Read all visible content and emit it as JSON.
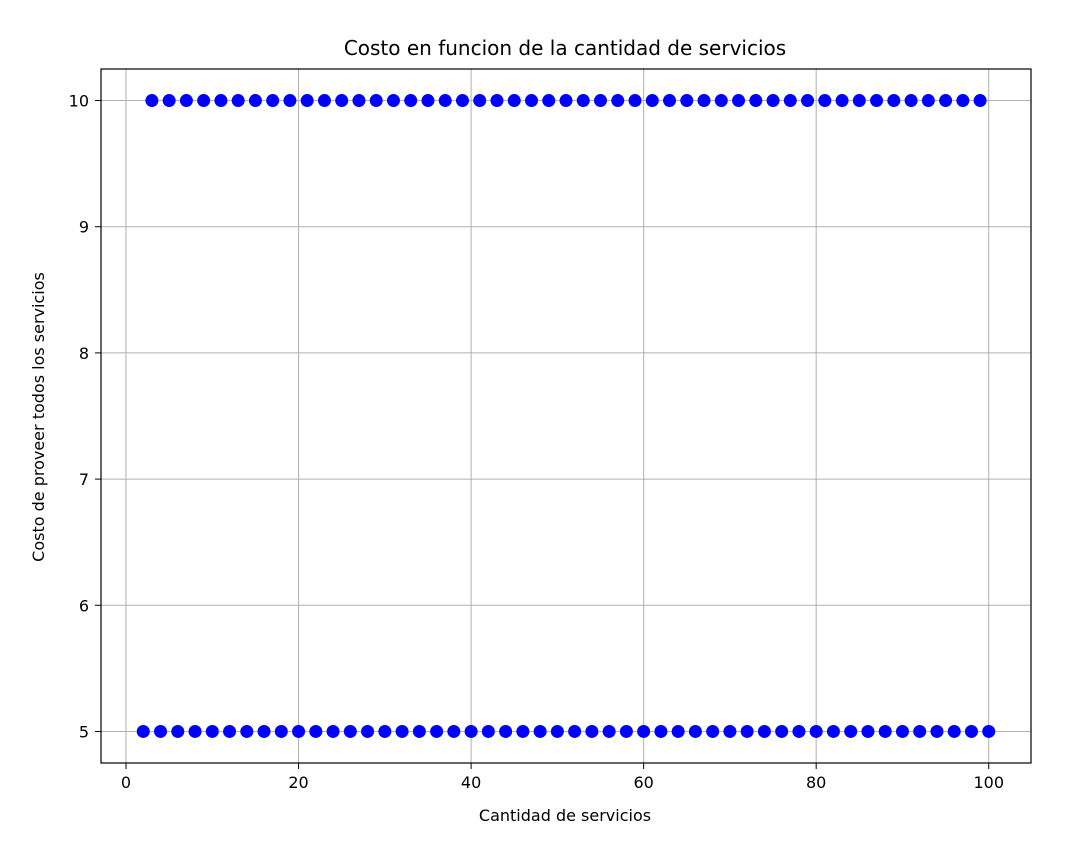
{
  "chart_data": {
    "type": "scatter",
    "title": "Costo en funcion de la cantidad de servicios",
    "xlabel": "Cantidad de servicios",
    "ylabel": "Costo de proveer todos los servicios",
    "xlim": [
      -2.9,
      104.9
    ],
    "ylim": [
      4.75,
      10.25
    ],
    "xticks": [
      0,
      20,
      40,
      60,
      80,
      100
    ],
    "yticks": [
      5,
      6,
      7,
      8,
      9,
      10
    ],
    "grid": true,
    "marker_color": "#0000ff",
    "series": [
      {
        "points": [
          {
            "x": 2,
            "y": 5
          },
          {
            "x": 3,
            "y": 10
          },
          {
            "x": 4,
            "y": 5
          },
          {
            "x": 5,
            "y": 10
          },
          {
            "x": 6,
            "y": 5
          },
          {
            "x": 7,
            "y": 10
          },
          {
            "x": 8,
            "y": 5
          },
          {
            "x": 9,
            "y": 10
          },
          {
            "x": 10,
            "y": 5
          },
          {
            "x": 11,
            "y": 10
          },
          {
            "x": 12,
            "y": 5
          },
          {
            "x": 13,
            "y": 10
          },
          {
            "x": 14,
            "y": 5
          },
          {
            "x": 15,
            "y": 10
          },
          {
            "x": 16,
            "y": 5
          },
          {
            "x": 17,
            "y": 10
          },
          {
            "x": 18,
            "y": 5
          },
          {
            "x": 19,
            "y": 10
          },
          {
            "x": 20,
            "y": 5
          },
          {
            "x": 21,
            "y": 10
          },
          {
            "x": 22,
            "y": 5
          },
          {
            "x": 23,
            "y": 10
          },
          {
            "x": 24,
            "y": 5
          },
          {
            "x": 25,
            "y": 10
          },
          {
            "x": 26,
            "y": 5
          },
          {
            "x": 27,
            "y": 10
          },
          {
            "x": 28,
            "y": 5
          },
          {
            "x": 29,
            "y": 10
          },
          {
            "x": 30,
            "y": 5
          },
          {
            "x": 31,
            "y": 10
          },
          {
            "x": 32,
            "y": 5
          },
          {
            "x": 33,
            "y": 10
          },
          {
            "x": 34,
            "y": 5
          },
          {
            "x": 35,
            "y": 10
          },
          {
            "x": 36,
            "y": 5
          },
          {
            "x": 37,
            "y": 10
          },
          {
            "x": 38,
            "y": 5
          },
          {
            "x": 39,
            "y": 10
          },
          {
            "x": 40,
            "y": 5
          },
          {
            "x": 41,
            "y": 10
          },
          {
            "x": 42,
            "y": 5
          },
          {
            "x": 43,
            "y": 10
          },
          {
            "x": 44,
            "y": 5
          },
          {
            "x": 45,
            "y": 10
          },
          {
            "x": 46,
            "y": 5
          },
          {
            "x": 47,
            "y": 10
          },
          {
            "x": 48,
            "y": 5
          },
          {
            "x": 49,
            "y": 10
          },
          {
            "x": 50,
            "y": 5
          },
          {
            "x": 51,
            "y": 10
          },
          {
            "x": 52,
            "y": 5
          },
          {
            "x": 53,
            "y": 10
          },
          {
            "x": 54,
            "y": 5
          },
          {
            "x": 55,
            "y": 10
          },
          {
            "x": 56,
            "y": 5
          },
          {
            "x": 57,
            "y": 10
          },
          {
            "x": 58,
            "y": 5
          },
          {
            "x": 59,
            "y": 10
          },
          {
            "x": 60,
            "y": 5
          },
          {
            "x": 61,
            "y": 10
          },
          {
            "x": 62,
            "y": 5
          },
          {
            "x": 63,
            "y": 10
          },
          {
            "x": 64,
            "y": 5
          },
          {
            "x": 65,
            "y": 10
          },
          {
            "x": 66,
            "y": 5
          },
          {
            "x": 67,
            "y": 10
          },
          {
            "x": 68,
            "y": 5
          },
          {
            "x": 69,
            "y": 10
          },
          {
            "x": 70,
            "y": 5
          },
          {
            "x": 71,
            "y": 10
          },
          {
            "x": 72,
            "y": 5
          },
          {
            "x": 73,
            "y": 10
          },
          {
            "x": 74,
            "y": 5
          },
          {
            "x": 75,
            "y": 10
          },
          {
            "x": 76,
            "y": 5
          },
          {
            "x": 77,
            "y": 10
          },
          {
            "x": 78,
            "y": 5
          },
          {
            "x": 79,
            "y": 10
          },
          {
            "x": 80,
            "y": 5
          },
          {
            "x": 81,
            "y": 10
          },
          {
            "x": 82,
            "y": 5
          },
          {
            "x": 83,
            "y": 10
          },
          {
            "x": 84,
            "y": 5
          },
          {
            "x": 85,
            "y": 10
          },
          {
            "x": 86,
            "y": 5
          },
          {
            "x": 87,
            "y": 10
          },
          {
            "x": 88,
            "y": 5
          },
          {
            "x": 89,
            "y": 10
          },
          {
            "x": 90,
            "y": 5
          },
          {
            "x": 91,
            "y": 10
          },
          {
            "x": 92,
            "y": 5
          },
          {
            "x": 93,
            "y": 10
          },
          {
            "x": 94,
            "y": 5
          },
          {
            "x": 95,
            "y": 10
          },
          {
            "x": 96,
            "y": 5
          },
          {
            "x": 97,
            "y": 10
          },
          {
            "x": 98,
            "y": 5
          },
          {
            "x": 99,
            "y": 10
          },
          {
            "x": 100,
            "y": 5
          }
        ]
      }
    ]
  }
}
